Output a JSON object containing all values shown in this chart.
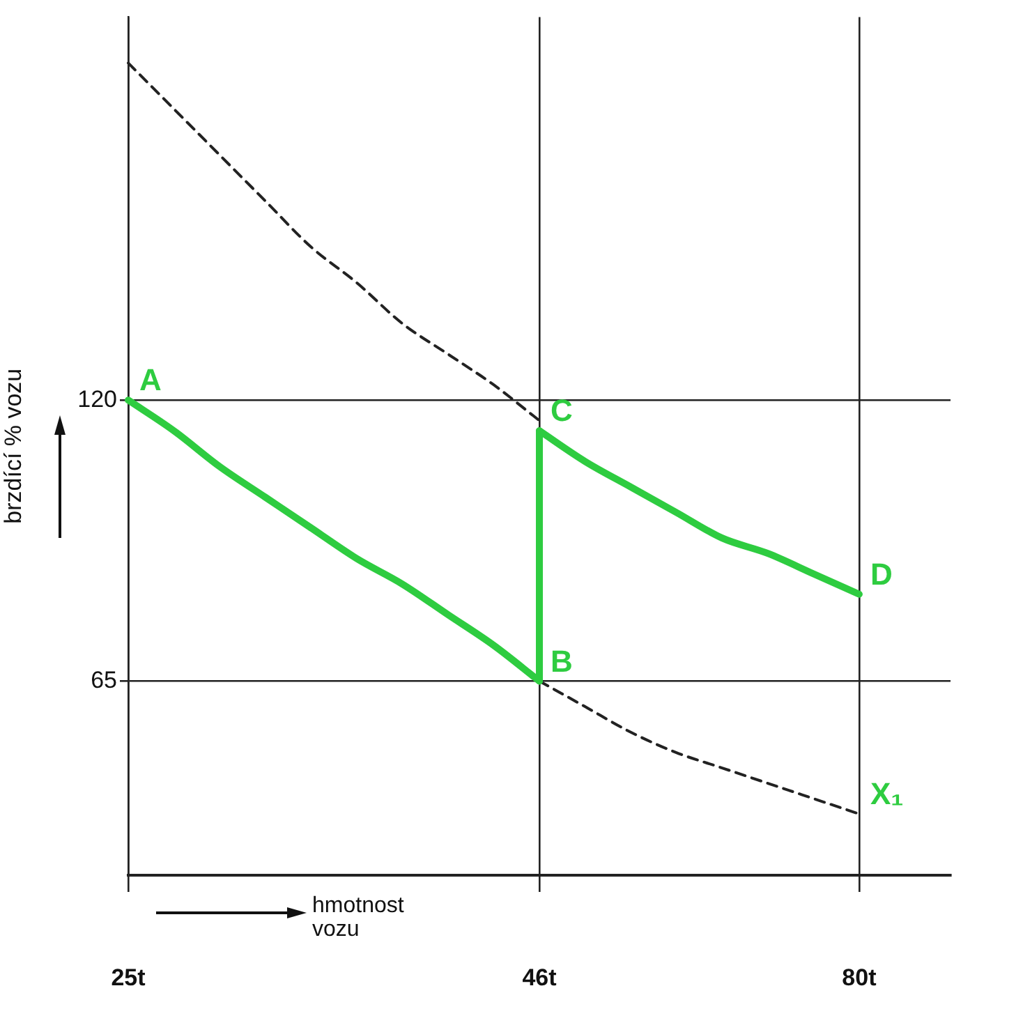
{
  "chart_data": {
    "type": "line",
    "xlabel": "hmotnost vozu",
    "ylabel": "brzdící % vozu",
    "categories": [
      "25t",
      null,
      null,
      null,
      null,
      null,
      null,
      null,
      null,
      "46t",
      null,
      null,
      null,
      null,
      null,
      null,
      "80t",
      null,
      null
    ],
    "series": [
      {
        "color": "#222222",
        "line_style": "dashed",
        "values": [
          186,
          177,
          168,
          159,
          150,
          143,
          135,
          129,
          123,
          116,
          null,
          null,
          null,
          null,
          null,
          null,
          null,
          null,
          null
        ]
      },
      {
        "color": "#2ecc40",
        "values": [
          120,
          114,
          107,
          101,
          95,
          89,
          84,
          78,
          72,
          65,
          null,
          null,
          null,
          null,
          null,
          null,
          null,
          null,
          null
        ]
      },
      {
        "color": "#2ecc40",
        "x": [
          "46t",
          "46t"
        ],
        "values": [
          65,
          114
        ]
      },
      {
        "color": "#2ecc40",
        "values": [
          null,
          null,
          null,
          null,
          null,
          null,
          null,
          null,
          null,
          114,
          108,
          103,
          98,
          93,
          90,
          86,
          82,
          null,
          null
        ]
      },
      {
        "color": "#222222",
        "line_style": "dashed",
        "values": [
          null,
          null,
          null,
          null,
          null,
          null,
          null,
          null,
          null,
          65,
          60,
          55,
          51,
          48,
          45,
          42,
          39,
          null,
          null
        ]
      }
    ],
    "ylim": [
      27,
      195
    ],
    "yticks": [
      65,
      120
    ],
    "grid": true,
    "legend": false,
    "annotations": [
      {
        "text": "A",
        "x": "25t",
        "y": 120
      },
      {
        "text": "B",
        "x": "46t",
        "y": 65
      },
      {
        "text": "C",
        "x": "46t",
        "y": 114
      },
      {
        "text": "D",
        "x": "80t",
        "y": 82
      },
      {
        "text": "X₁",
        "x": "80t",
        "y": 39
      }
    ]
  }
}
